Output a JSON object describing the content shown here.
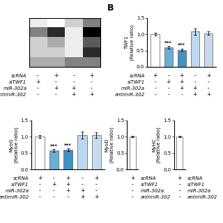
{
  "chart_data": [
    {
      "type": "heatmap",
      "cells": [
        [
          0.4,
          0.3,
          0.5,
          0.7
        ],
        [
          0.7,
          0.9,
          0.4,
          1.0
        ],
        [
          0.5,
          0.6,
          0.4,
          0.8
        ],
        [
          0.5,
          0.5,
          0.4,
          0.9
        ],
        [
          0.6,
          0.6,
          0.7,
          0.7
        ]
      ],
      "tick_labels": false,
      "condition_rows": [
        {
          "label": "scRNA",
          "values": [
            "-",
            "+",
            "-",
            "+"
          ]
        },
        {
          "label": "siTWF1",
          "values": [
            "+",
            "-",
            "-",
            "-"
          ]
        },
        {
          "label": "miR-302a",
          "values": [
            "-",
            "+",
            "+",
            "-"
          ]
        },
        {
          "label": "antimiR-302",
          "values": [
            "-",
            "-",
            "+",
            "+"
          ]
        }
      ]
    },
    {
      "type": "bar",
      "y_label": "TWF1\n(Relative ratio)",
      "categories": [
        null,
        null,
        null,
        null,
        null
      ],
      "values": [
        1.0,
        0.6,
        0.52,
        1.08,
        1.03
      ],
      "errors": [
        0.04,
        0.04,
        0.04,
        0.1,
        0.06
      ],
      "colors": [
        "white",
        "#6BAED6",
        "#4292C6",
        "#BDD7EE",
        "#C6DCEE"
      ],
      "edge_color": "#555555",
      "annotations": [
        {
          "index": 1,
          "text": "***"
        },
        {
          "index": 2,
          "text": "***"
        }
      ],
      "ylim": [
        0,
        1.5
      ],
      "yticks": [
        {
          "value": 0,
          "label": "0.0"
        },
        {
          "value": 0.5,
          "label": "0.5"
        },
        {
          "value": 1,
          "label": "1.0"
        },
        {
          "value": 1.5,
          "label": "1.5"
        }
      ],
      "tick_labels": "y",
      "condition_rows": [
        {
          "label": "scRNA",
          "values": [
            "+",
            "-",
            "+",
            "-",
            "+"
          ]
        },
        {
          "label": "siTWF1",
          "values": [
            "-",
            "+",
            "+",
            "-",
            "-"
          ]
        },
        {
          "label": "miR-302a",
          "values": [
            "-",
            "-",
            "+",
            "+",
            "-"
          ]
        },
        {
          "label": "antimiR-302",
          "values": [
            "-",
            "-",
            "-",
            "+",
            "+"
          ]
        }
      ]
    },
    {
      "type": "bar",
      "y_label": "MyoD\n(Relative ratio)",
      "categories": [
        null
      ],
      "values": [
        1.0
      ],
      "errors": [
        0.02
      ],
      "colors": [
        "white"
      ],
      "edge_color": "#555555",
      "ylim": [
        0,
        1.5
      ],
      "yticks": [
        {
          "value": 0,
          "label": "0.0"
        },
        {
          "value": 0.5,
          "label": "0.5"
        },
        {
          "value": 1,
          "label": "1.0"
        },
        {
          "value": 1.5,
          "label": "1.5"
        }
      ],
      "tick_labels": "y",
      "condition_rows": [
        {
          "label": "scRNA",
          "values": [
            "+"
          ]
        },
        {
          "label": "siTWF1",
          "values": [
            "-"
          ]
        },
        {
          "label": "miR-302a",
          "values": [
            "-"
          ]
        },
        {
          "label": "antimiR-302",
          "values": [
            "-"
          ]
        }
      ]
    },
    {
      "type": "bar",
      "y_label": "MyoG\n(Relative ratio)",
      "categories": [
        null,
        null,
        null,
        null,
        null
      ],
      "values": [
        1.0,
        0.58,
        0.6,
        1.05,
        1.05
      ],
      "errors": [
        0.04,
        0.04,
        0.04,
        0.1,
        0.08
      ],
      "colors": [
        "white",
        "#6BAED6",
        "#4292C6",
        "#BDD7EE",
        "#C6DCEE"
      ],
      "edge_color": "#555555",
      "annotations": [
        {
          "index": 1,
          "text": "***"
        },
        {
          "index": 2,
          "text": "***"
        }
      ],
      "ylim": [
        0,
        1.5
      ],
      "yticks": [
        {
          "value": 0,
          "label": "0.0"
        },
        {
          "value": 0.5,
          "label": "0.5"
        },
        {
          "value": 1,
          "label": "1.0"
        },
        {
          "value": 1.5,
          "label": "1.5"
        }
      ],
      "tick_labels": "y",
      "condition_rows": [
        {
          "label": "scRNA",
          "values": [
            "+",
            "-",
            "+",
            "-",
            "+"
          ]
        },
        {
          "label": "siTWF1",
          "values": [
            "-",
            "+",
            "+",
            "-",
            "-"
          ]
        },
        {
          "label": "miR-302a",
          "values": [
            "-",
            "-",
            "+",
            "+",
            "-"
          ]
        },
        {
          "label": "antimiR-302",
          "values": [
            "-",
            "-",
            "-",
            "+",
            "+"
          ]
        }
      ]
    },
    {
      "type": "bar",
      "y_label": "MyHC\n(Relative ratio)",
      "categories": [
        null
      ],
      "values": [
        1.0
      ],
      "errors": [
        0.02
      ],
      "colors": [
        "white"
      ],
      "edge_color": "#555555",
      "ylim": [
        0,
        1.5
      ],
      "yticks": [
        {
          "value": 0,
          "label": "0.0"
        },
        {
          "value": 0.5,
          "label": "0.5"
        },
        {
          "value": 1,
          "label": "1.0"
        },
        {
          "value": 1.5,
          "label": "1.5"
        }
      ],
      "tick_labels": "y",
      "condition_rows": [
        {
          "label": "scRNA",
          "values": [
            "+"
          ]
        },
        {
          "label": "siTWF1",
          "values": [
            "-"
          ]
        },
        {
          "label": "miR-302a",
          "values": [
            "-"
          ]
        },
        {
          "label": "antimiR-302",
          "values": [
            "-"
          ]
        }
      ]
    }
  ],
  "annotations": [
    "B"
  ]
}
